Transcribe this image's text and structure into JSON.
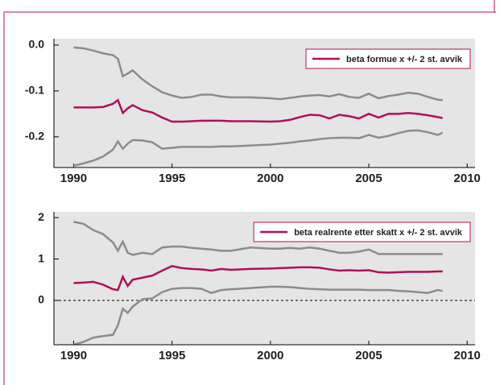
{
  "chart_data": [
    {
      "type": "line",
      "legend": "upper right",
      "background": "#e5e5e5",
      "x": [
        1990,
        1990.5,
        1991,
        1991.5,
        1992,
        1992.25,
        1992.5,
        1992.75,
        1993,
        1993.5,
        1994,
        1994.5,
        1995,
        1995.5,
        1996,
        1996.5,
        1997,
        1997.5,
        1998,
        1999,
        2000,
        2000.5,
        2001,
        2001.5,
        2002,
        2002.5,
        2003,
        2003.5,
        2004,
        2004.5,
        2005,
        2005.5,
        2006,
        2006.5,
        2007,
        2007.5,
        2008,
        2008.5,
        2008.75
      ],
      "xlim": [
        1989,
        2010.4
      ],
      "xticks": [
        1990,
        1995,
        2000,
        2005,
        2010
      ],
      "ylim": [
        -0.267,
        0.014
      ],
      "yticks": [
        {
          "value": 0,
          "label": "0.0"
        },
        -0.1,
        -0.2
      ],
      "series": [
        {
          "color": "#8c8c8c",
          "values": [
            -0.005,
            -0.007,
            -0.012,
            -0.018,
            -0.022,
            -0.03,
            -0.068,
            -0.062,
            -0.055,
            -0.075,
            -0.09,
            -0.103,
            -0.11,
            -0.115,
            -0.113,
            -0.108,
            -0.108,
            -0.112,
            -0.114,
            -0.114,
            -0.116,
            -0.118,
            -0.115,
            -0.112,
            -0.11,
            -0.109,
            -0.112,
            -0.107,
            -0.113,
            -0.115,
            -0.106,
            -0.116,
            -0.111,
            -0.108,
            -0.104,
            -0.106,
            -0.113,
            -0.119,
            -0.12
          ]
        },
        {
          "name": "beta formue x +/- 2 st. avvik",
          "color": "#b0105a",
          "values": [
            -0.136,
            -0.136,
            -0.136,
            -0.135,
            -0.128,
            -0.12,
            -0.148,
            -0.138,
            -0.131,
            -0.142,
            -0.147,
            -0.158,
            -0.167,
            -0.167,
            -0.166,
            -0.165,
            -0.165,
            -0.165,
            -0.166,
            -0.166,
            -0.167,
            -0.166,
            -0.163,
            -0.157,
            -0.152,
            -0.153,
            -0.16,
            -0.152,
            -0.155,
            -0.16,
            -0.15,
            -0.158,
            -0.15,
            -0.15,
            -0.148,
            -0.15,
            -0.153,
            -0.157,
            -0.159
          ]
        },
        {
          "color": "#8c8c8c",
          "values": [
            -0.263,
            -0.258,
            -0.252,
            -0.243,
            -0.228,
            -0.21,
            -0.226,
            -0.215,
            -0.207,
            -0.208,
            -0.212,
            -0.226,
            -0.224,
            -0.222,
            -0.222,
            -0.222,
            -0.222,
            -0.221,
            -0.221,
            -0.219,
            -0.217,
            -0.215,
            -0.213,
            -0.21,
            -0.208,
            -0.205,
            -0.203,
            -0.202,
            -0.202,
            -0.203,
            -0.196,
            -0.202,
            -0.198,
            -0.192,
            -0.187,
            -0.186,
            -0.19,
            -0.196,
            -0.191
          ]
        }
      ]
    },
    {
      "type": "line",
      "legend": "upper right",
      "background": "#e5e5e5",
      "reference_line": 0,
      "x": [
        1990,
        1990.5,
        1991,
        1991.5,
        1992,
        1992.25,
        1992.5,
        1992.75,
        1993,
        1993.5,
        1994,
        1994.5,
        1995,
        1995.5,
        1996,
        1996.5,
        1997,
        1997.5,
        1998,
        1999,
        2000,
        2000.5,
        2001,
        2001.5,
        2002,
        2002.5,
        2003,
        2003.5,
        2004,
        2004.5,
        2005,
        2005.5,
        2006,
        2006.5,
        2007,
        2007.5,
        2008,
        2008.5,
        2008.75
      ],
      "xlim": [
        1989,
        2010.4
      ],
      "xticks": [
        1990,
        1995,
        2000,
        2005,
        2010
      ],
      "ylim": [
        -1.07,
        2.14
      ],
      "yticks": [
        0,
        1,
        2
      ],
      "series": [
        {
          "color": "#8c8c8c",
          "values": [
            1.9,
            1.85,
            1.7,
            1.6,
            1.4,
            1.2,
            1.42,
            1.15,
            1.1,
            1.15,
            1.12,
            1.28,
            1.3,
            1.3,
            1.27,
            1.25,
            1.23,
            1.2,
            1.2,
            1.28,
            1.25,
            1.25,
            1.27,
            1.25,
            1.28,
            1.25,
            1.2,
            1.15,
            1.15,
            1.18,
            1.23,
            1.12,
            1.12,
            1.12,
            1.12,
            1.12,
            1.12,
            1.12,
            1.12
          ]
        },
        {
          "name": "beta realrente etter skatt x +/- 2 st. avvik",
          "color": "#b0105a",
          "values": [
            0.42,
            0.43,
            0.45,
            0.38,
            0.27,
            0.25,
            0.57,
            0.35,
            0.5,
            0.55,
            0.6,
            0.72,
            0.83,
            0.78,
            0.76,
            0.75,
            0.72,
            0.76,
            0.74,
            0.76,
            0.77,
            0.78,
            0.79,
            0.8,
            0.8,
            0.79,
            0.75,
            0.72,
            0.73,
            0.72,
            0.73,
            0.68,
            0.67,
            0.68,
            0.69,
            0.69,
            0.69,
            0.7,
            0.7
          ]
        },
        {
          "color": "#8c8c8c",
          "values": [
            -1.07,
            -1.0,
            -0.9,
            -0.86,
            -0.83,
            -0.6,
            -0.2,
            -0.3,
            -0.15,
            0.03,
            0.05,
            0.2,
            0.28,
            0.3,
            0.3,
            0.28,
            0.18,
            0.25,
            0.27,
            0.3,
            0.33,
            0.33,
            0.32,
            0.3,
            0.28,
            0.27,
            0.26,
            0.26,
            0.26,
            0.26,
            0.25,
            0.25,
            0.25,
            0.23,
            0.22,
            0.2,
            0.18,
            0.25,
            0.23
          ]
        }
      ]
    }
  ]
}
